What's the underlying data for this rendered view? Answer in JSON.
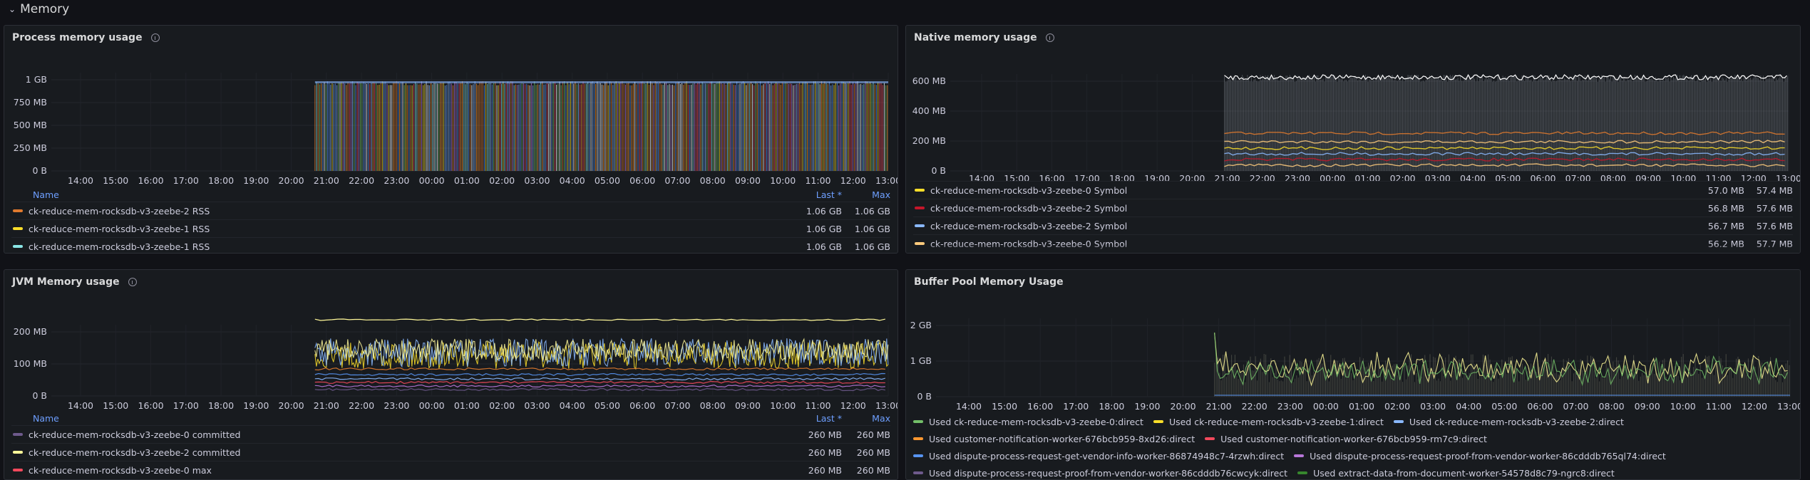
{
  "row_title": "Memory",
  "colors": {
    "ts1": "#e07a2e",
    "ts2": "#fade2a",
    "ts3": "#73bf69",
    "ts4": "#8ab8ff",
    "ts5": "#f2495c",
    "ts6": "#b877d9",
    "ts7": "#5794f2",
    "ts8": "#ffffff"
  },
  "chart_data": [
    {
      "id": "process",
      "type": "line",
      "title": "Process memory usage",
      "ylabels": [
        "1 GB",
        "750 MB",
        "500 MB",
        "250 MB",
        "0 B"
      ],
      "xlabels": [
        "14:00",
        "15:00",
        "16:00",
        "17:00",
        "18:00",
        "19:00",
        "20:00",
        "21:00",
        "22:00",
        "23:00",
        "00:00",
        "01:00",
        "02:00",
        "03:00",
        "04:00",
        "05:00",
        "06:00",
        "07:00",
        "08:00",
        "09:00",
        "10:00",
        "11:00",
        "12:00",
        "13:00"
      ],
      "data_start_label": "21:00",
      "legend": {
        "mode": "table",
        "columns": [
          "Name",
          "Last *",
          "Max"
        ],
        "rows": [
          {
            "name": "ck-reduce-mem-rocksdb-v3-zeebe-2 RSS",
            "last": "1.06 GB",
            "max": "1.06 GB",
            "color": "#e07a2e"
          },
          {
            "name": "ck-reduce-mem-rocksdb-v3-zeebe-1 RSS",
            "last": "1.06 GB",
            "max": "1.06 GB",
            "color": "#fade2a"
          },
          {
            "name": "ck-reduce-mem-rocksdb-v3-zeebe-1 RSS",
            "last": "1.06 GB",
            "max": "1.06 GB",
            "color": "#8ae5e5"
          }
        ]
      }
    },
    {
      "id": "native",
      "type": "line",
      "title": "Native memory usage",
      "ylabels": [
        "600 MB",
        "400 MB",
        "200 MB",
        "0 B"
      ],
      "xlabels": [
        "14:00",
        "15:00",
        "16:00",
        "17:00",
        "18:00",
        "19:00",
        "20:00",
        "21:00",
        "22:00",
        "23:00",
        "00:00",
        "01:00",
        "02:00",
        "03:00",
        "04:00",
        "05:00",
        "06:00",
        "07:00",
        "08:00",
        "09:00",
        "10:00",
        "11:00",
        "12:00",
        "13:00"
      ],
      "data_start_label": "21:00",
      "legend": {
        "mode": "table",
        "columns": [],
        "rows": [
          {
            "name": "ck-reduce-mem-rocksdb-v3-zeebe-0 Symbol",
            "last": "57.0 MB",
            "max": "57.4 MB",
            "color": "#fade2a"
          },
          {
            "name": "ck-reduce-mem-rocksdb-v3-zeebe-2 Symbol",
            "last": "56.8 MB",
            "max": "57.6 MB",
            "color": "#c4162a"
          },
          {
            "name": "ck-reduce-mem-rocksdb-v3-zeebe-2 Symbol",
            "last": "56.7 MB",
            "max": "57.6 MB",
            "color": "#8ab8ff"
          },
          {
            "name": "ck-reduce-mem-rocksdb-v3-zeebe-0 Symbol",
            "last": "56.2 MB",
            "max": "57.7 MB",
            "color": "#ffcb7d"
          }
        ]
      }
    },
    {
      "id": "jvm",
      "type": "line",
      "title": "JVM Memory usage",
      "ylabels": [
        "200 MB",
        "100 MB",
        "0 B"
      ],
      "xlabels": [
        "14:00",
        "15:00",
        "16:00",
        "17:00",
        "18:00",
        "19:00",
        "20:00",
        "21:00",
        "22:00",
        "23:00",
        "00:00",
        "01:00",
        "02:00",
        "03:00",
        "04:00",
        "05:00",
        "06:00",
        "07:00",
        "08:00",
        "09:00",
        "10:00",
        "11:00",
        "12:00",
        "13:00"
      ],
      "data_start_label": "21:00",
      "legend": {
        "mode": "table",
        "columns": [
          "Name",
          "Last *",
          "Max"
        ],
        "rows": [
          {
            "name": "ck-reduce-mem-rocksdb-v3-zeebe-0 committed",
            "last": "260 MB",
            "max": "260 MB",
            "color": "#6e5a8c"
          },
          {
            "name": "ck-reduce-mem-rocksdb-v3-zeebe-2 committed",
            "last": "260 MB",
            "max": "260 MB",
            "color": "#fff899"
          },
          {
            "name": "ck-reduce-mem-rocksdb-v3-zeebe-0 max",
            "last": "260 MB",
            "max": "260 MB",
            "color": "#f2495c"
          }
        ]
      }
    },
    {
      "id": "buffer",
      "type": "line",
      "title": "Buffer Pool Memory Usage",
      "ylabels": [
        "2 GB",
        "1 GB",
        "0 B"
      ],
      "xlabels": [
        "14:00",
        "15:00",
        "16:00",
        "17:00",
        "18:00",
        "19:00",
        "20:00",
        "21:00",
        "22:00",
        "23:00",
        "00:00",
        "01:00",
        "02:00",
        "03:00",
        "04:00",
        "05:00",
        "06:00",
        "07:00",
        "08:00",
        "09:00",
        "10:00",
        "11:00",
        "12:00",
        "13:00"
      ],
      "data_start_label": "21:00",
      "legend": {
        "mode": "list",
        "items": [
          {
            "name": "Used ck-reduce-mem-rocksdb-v3-zeebe-0:direct",
            "color": "#73bf69"
          },
          {
            "name": "Used ck-reduce-mem-rocksdb-v3-zeebe-1:direct",
            "color": "#fade2a"
          },
          {
            "name": "Used ck-reduce-mem-rocksdb-v3-zeebe-2:direct",
            "color": "#8ab8ff"
          },
          {
            "name": "Used customer-notification-worker-676bcb959-8xd26:direct",
            "color": "#ff9830"
          },
          {
            "name": "Used customer-notification-worker-676bcb959-rm7c9:direct",
            "color": "#f2495c"
          },
          {
            "name": "Used dispute-process-request-get-vendor-info-worker-86874948c7-4rzwh:direct",
            "color": "#5794f2"
          },
          {
            "name": "Used dispute-process-request-proof-from-vendor-worker-86cdddb765ql74:direct",
            "color": "#b877d9"
          },
          {
            "name": "Used dispute-process-request-proof-from-vendor-worker-86cdddb76cwcyk:direct",
            "color": "#6e5a8c"
          },
          {
            "name": "Used extract-data-from-document-worker-54578d8c79-ngrc8:direct",
            "color": "#37872d"
          }
        ]
      }
    }
  ]
}
